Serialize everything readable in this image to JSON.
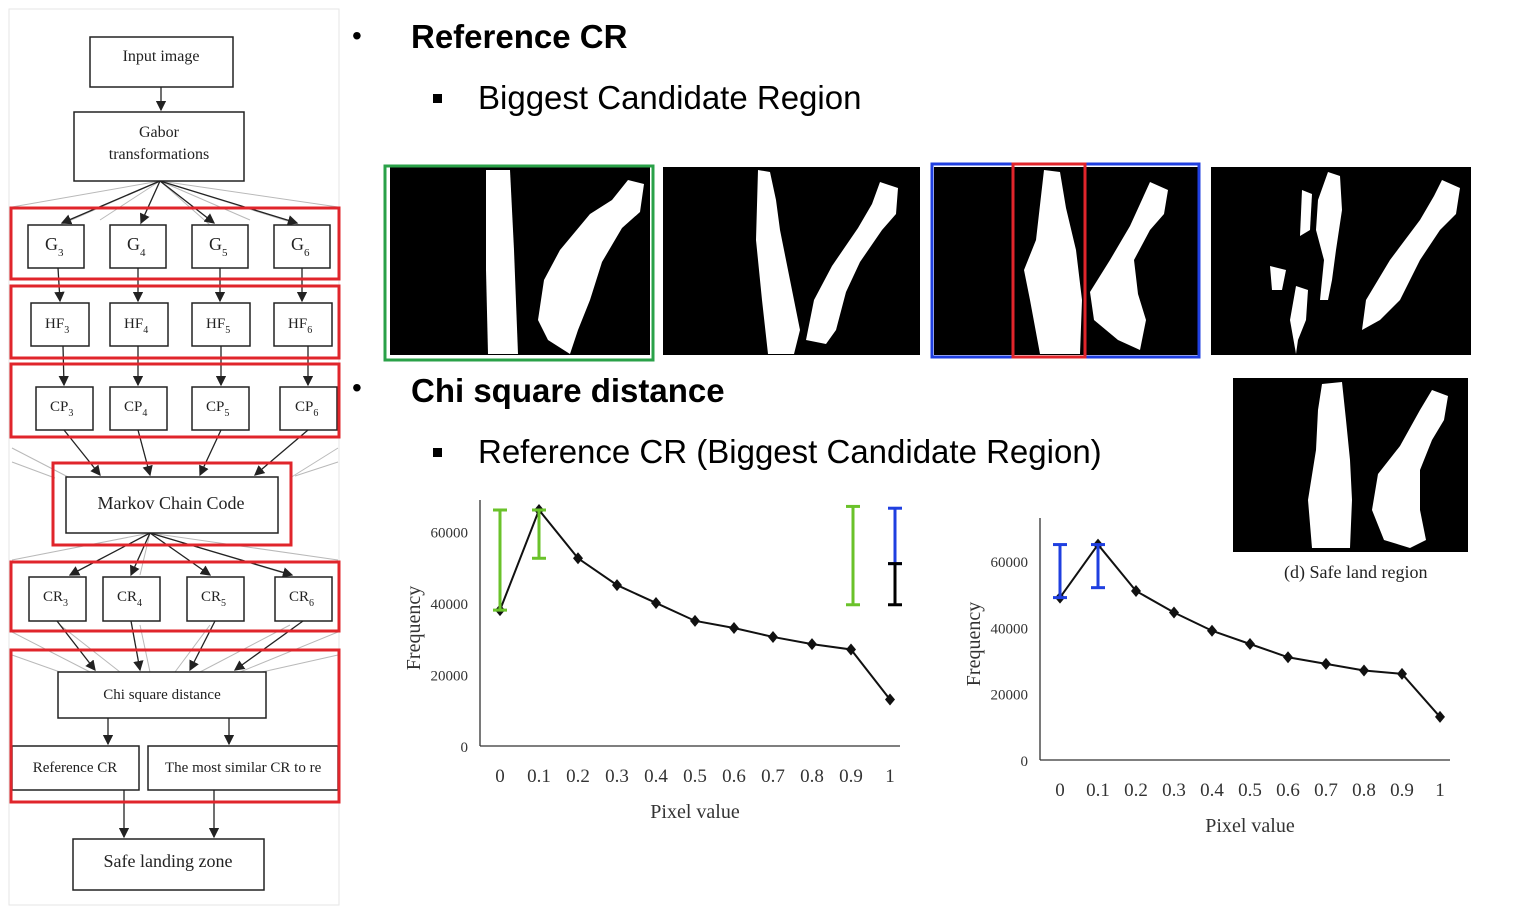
{
  "flowchart": {
    "input": "Input image",
    "gabor_line1": "Gabor",
    "gabor_line2": "transformations",
    "g": [
      "G",
      "G",
      "G",
      "G"
    ],
    "hf": [
      "HF",
      "HF",
      "HF",
      "HF"
    ],
    "cp": [
      "CP",
      "CP",
      "CP",
      "CP"
    ],
    "cr": [
      "CR",
      "CR",
      "CR",
      "CR"
    ],
    "subs": [
      "3",
      "4",
      "5",
      "6"
    ],
    "markov": "Markov Chain Code",
    "chi": "Chi square distance",
    "reference": "Reference CR",
    "most_similar": "The most similar CR to re",
    "safe": "Safe landing zone"
  },
  "bullets": {
    "b1": "Reference CR",
    "b1_sub": "Biggest Candidate Region",
    "b2": "Chi square distance",
    "b2_sub": "Reference CR (Biggest Candidate Region)",
    "bullet_char": "•"
  },
  "caption": "(d) Safe land region",
  "colors": {
    "red": "#e0252b",
    "green": "#2aa148",
    "blue": "#1f3fe0",
    "lime": "#6ac22a",
    "black": "#000000"
  },
  "chart_data": [
    {
      "type": "line",
      "x": [
        0,
        0.1,
        0.2,
        0.3,
        0.4,
        0.5,
        0.6,
        0.7,
        0.8,
        0.9,
        1
      ],
      "xticks": [
        "0",
        "0.1",
        "0.2",
        "0.3",
        "0.4",
        "0.5",
        "0.6",
        "0.7",
        "0.8",
        "0.9",
        "1"
      ],
      "values": [
        38000,
        66000,
        52500,
        45000,
        40000,
        35000,
        33000,
        30500,
        28500,
        27000,
        13000
      ],
      "yticks": [
        "0",
        "20000",
        "40000",
        "60000"
      ],
      "xlabel": "Pixel value",
      "ylabel": "Frequency",
      "ylim": [
        0,
        66000
      ],
      "error_bars": [
        {
          "x": 0,
          "low": 38000,
          "high": 66000,
          "color": "lime"
        },
        {
          "x": 0.1,
          "low": 52500,
          "high": 66000,
          "color": "lime"
        },
        {
          "x": 0.9,
          "low": 39500,
          "high": 67000,
          "color": "lime"
        },
        {
          "x": 1,
          "low": 51000,
          "high": 66500,
          "color": "blue"
        },
        {
          "x": 1,
          "low": 39500,
          "high": 51000,
          "color": "black"
        }
      ]
    },
    {
      "type": "line",
      "x": [
        0,
        0.1,
        0.2,
        0.3,
        0.4,
        0.5,
        0.6,
        0.7,
        0.8,
        0.9,
        1
      ],
      "xticks": [
        "0",
        "0.1",
        "0.2",
        "0.3",
        "0.4",
        "0.5",
        "0.6",
        "0.7",
        "0.8",
        "0.9",
        "1"
      ],
      "values": [
        49000,
        65000,
        51000,
        44500,
        39000,
        35000,
        31000,
        29000,
        27000,
        26000,
        13000
      ],
      "yticks": [
        "0",
        "20000",
        "40000",
        "60000"
      ],
      "xlabel": "Pixel value",
      "ylabel": "Frequency",
      "ylim": [
        0,
        70000
      ],
      "error_bars": [
        {
          "x": 0,
          "low": 49000,
          "high": 65000,
          "color": "blue"
        },
        {
          "x": 0.1,
          "low": 52000,
          "high": 65000,
          "color": "blue"
        }
      ]
    }
  ]
}
